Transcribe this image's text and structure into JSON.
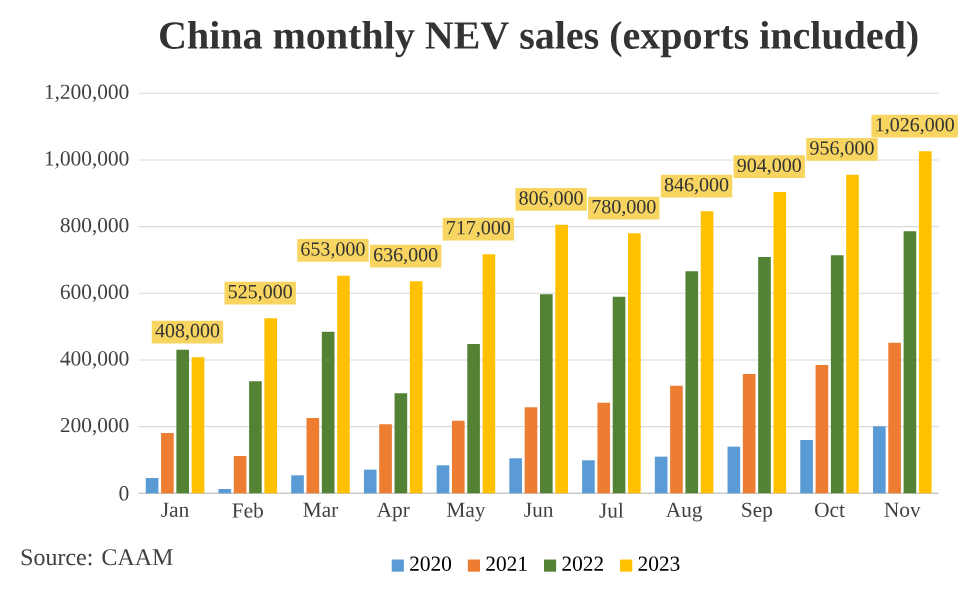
{
  "chart_data": {
    "type": "bar",
    "title": "China monthly NEV sales (exports included)",
    "categories": [
      "Jan",
      "Feb",
      "Mar",
      "Apr",
      "May",
      "Jun",
      "Jul",
      "Aug",
      "Sep",
      "Oct",
      "Nov"
    ],
    "series": [
      {
        "name": "2020",
        "color": "#5b9bd5",
        "values": [
          46000,
          13000,
          54000,
          71000,
          84000,
          105000,
          99000,
          110000,
          140000,
          160000,
          201000
        ]
      },
      {
        "name": "2021",
        "color": "#ed7d31",
        "values": [
          181000,
          112000,
          226000,
          207000,
          218000,
          258000,
          272000,
          323000,
          358000,
          385000,
          452000
        ]
      },
      {
        "name": "2022",
        "color": "#548235",
        "values": [
          431000,
          336000,
          485000,
          300000,
          448000,
          597000,
          590000,
          666000,
          709000,
          714000,
          786000
        ]
      },
      {
        "name": "2023",
        "color": "#ffc000",
        "values": [
          408000,
          525000,
          653000,
          636000,
          717000,
          806000,
          780000,
          846000,
          904000,
          956000,
          1026000
        ],
        "value_labels": [
          "408,000",
          "525,000",
          "653,000",
          "636,000",
          "717,000",
          "806,000",
          "780,000",
          "846,000",
          "904,000",
          "956,000",
          "1,026,000"
        ]
      }
    ],
    "ylim": [
      0,
      1200000
    ],
    "yticks": [
      0,
      {
        "value": 200000,
        "label": "200,000"
      },
      {
        "value": 400000,
        "label": "400,000"
      },
      {
        "value": 600000,
        "label": "600,000"
      },
      {
        "value": 800000,
        "label": "800,000"
      },
      {
        "value": 1000000,
        "label": "1,000,000"
      },
      {
        "value": 1200000,
        "label": "1,200,000"
      }
    ],
    "grid": "y",
    "legend": "bottom",
    "annotations": [
      "Source: CAAM"
    ]
  }
}
